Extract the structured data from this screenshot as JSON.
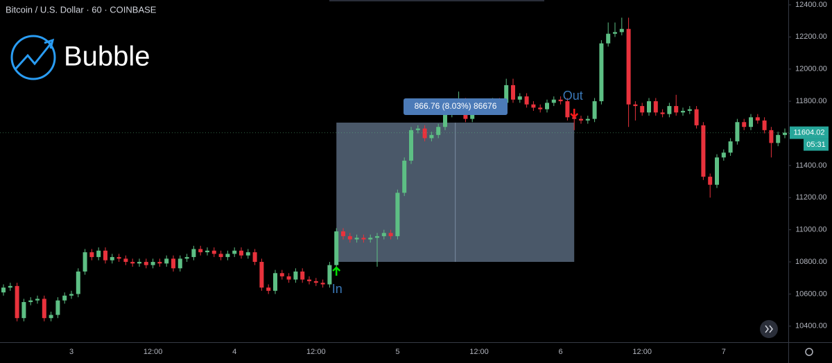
{
  "chart_data": {
    "type": "candlestick",
    "title": "Bitcoin / U.S. Dollar · 60 · COINBASE",
    "logo": "Bubble",
    "categories": [
      null,
      null,
      null,
      null,
      null,
      null,
      null,
      null,
      null,
      null,
      "3",
      null,
      null,
      null,
      null,
      null,
      null,
      null,
      null,
      null,
      null,
      null,
      "12:00",
      null,
      null,
      null,
      null,
      null,
      null,
      null,
      null,
      null,
      null,
      null,
      "4",
      null,
      null,
      null,
      null,
      null,
      null,
      null,
      null,
      null,
      null,
      null,
      "12:00",
      null,
      null,
      null,
      null,
      null,
      null,
      null,
      null,
      null,
      null,
      null,
      "5",
      null,
      null,
      null,
      null,
      null,
      null,
      null,
      null,
      null,
      null,
      null,
      "12:00",
      null,
      null,
      null,
      null,
      null,
      null,
      null,
      null,
      null,
      null,
      null,
      "6",
      null,
      null,
      null,
      null,
      null,
      null,
      null,
      null,
      null,
      null,
      null,
      "12:00",
      null,
      null,
      null,
      null,
      null,
      null,
      null,
      null,
      null,
      null,
      null,
      "7",
      null,
      null,
      null,
      null,
      null,
      null,
      null,
      null,
      null
    ],
    "open": [
      10610,
      10640,
      10650,
      10450,
      10550,
      10560,
      10570,
      10450,
      10470,
      10560,
      10590,
      10600,
      10740,
      10860,
      10830,
      10870,
      10810,
      10830,
      10820,
      10800,
      10790,
      10800,
      10780,
      10800,
      10790,
      10820,
      10760,
      10820,
      10830,
      10880,
      10860,
      10870,
      10850,
      10830,
      10850,
      10870,
      10840,
      10860,
      10800,
      10640,
      10620,
      10730,
      10710,
      10690,
      10740,
      10690,
      10680,
      10670,
      10660,
      10780,
      10990,
      10960,
      10940,
      10950,
      10940,
      10950,
      10960,
      10980,
      10960,
      11230,
      11430,
      11620,
      11630,
      11570,
      11590,
      11640,
      11720,
      11770,
      11800,
      11690,
      11780,
      11790,
      11770,
      11800,
      11790,
      11900,
      11810,
      11830,
      11780,
      11760,
      11750,
      11790,
      11810,
      11800,
      11700,
      11690,
      11680,
      11690,
      11800,
      12160,
      12220,
      12230,
      12250,
      11780,
      11770,
      11730,
      11800,
      11730,
      11720,
      11770,
      11730,
      11740,
      11750,
      11650,
      11330,
      11280,
      11450,
      11480,
      11550,
      11670,
      11640,
      11700,
      11680,
      11620,
      11540,
      11590
    ],
    "high": [
      10660,
      10670,
      10670,
      10570,
      10580,
      10590,
      10590,
      10490,
      10580,
      10610,
      10620,
      10760,
      10880,
      10880,
      10890,
      10890,
      10850,
      10850,
      10840,
      10820,
      10820,
      10820,
      10820,
      10820,
      10840,
      10840,
      10840,
      10850,
      10900,
      10900,
      10890,
      10890,
      10870,
      10870,
      10890,
      10890,
      10880,
      10880,
      10820,
      10660,
      10750,
      10750,
      10730,
      10760,
      10760,
      10710,
      10700,
      10690,
      10800,
      11010,
      11010,
      10980,
      10970,
      10970,
      10970,
      10980,
      11000,
      11000,
      11250,
      11450,
      11640,
      11650,
      11650,
      11610,
      11660,
      11740,
      11790,
      11860,
      11820,
      11800,
      11810,
      11810,
      11820,
      11820,
      11940,
      11940,
      11850,
      11850,
      11800,
      11780,
      11810,
      11830,
      11830,
      11820,
      11720,
      11710,
      11710,
      11820,
      12180,
      12290,
      12290,
      12320,
      12320,
      11800,
      11790,
      11820,
      11820,
      11750,
      11790,
      11840,
      11760,
      11770,
      11770,
      11670,
      11350,
      11470,
      11500,
      11570,
      11690,
      11690,
      11720,
      11720,
      11700,
      11640,
      11610,
      11630
    ],
    "low": [
      10590,
      10620,
      10430,
      10430,
      10530,
      10540,
      10430,
      10430,
      10450,
      10540,
      10570,
      10580,
      10720,
      10810,
      10810,
      10790,
      10790,
      10800,
      10780,
      10770,
      10770,
      10760,
      10760,
      10770,
      10770,
      10740,
      10740,
      10800,
      10810,
      10840,
      10840,
      10830,
      10810,
      10810,
      10830,
      10820,
      10820,
      10780,
      10620,
      10600,
      10600,
      10690,
      10670,
      10670,
      10670,
      10660,
      10650,
      10640,
      10640,
      10760,
      10940,
      10920,
      10920,
      10920,
      10920,
      10770,
      10940,
      10940,
      10940,
      11210,
      11410,
      11600,
      11550,
      11550,
      11570,
      11620,
      11700,
      11750,
      11670,
      11670,
      11760,
      11750,
      11750,
      11770,
      11770,
      11790,
      11790,
      11760,
      11740,
      11730,
      11730,
      11770,
      11780,
      11680,
      11620,
      11660,
      11660,
      11670,
      11780,
      12140,
      12200,
      12210,
      11640,
      11680,
      11710,
      11710,
      11710,
      11700,
      11700,
      11710,
      11710,
      11720,
      11630,
      11310,
      11200,
      11260,
      11430,
      11460,
      11530,
      11620,
      11620,
      11660,
      11600,
      11450,
      11520,
      11570
    ],
    "close": [
      10640,
      10650,
      10450,
      10550,
      10560,
      10570,
      10450,
      10470,
      10560,
      10590,
      10600,
      10740,
      10860,
      10830,
      10870,
      10810,
      10830,
      10820,
      10800,
      10790,
      10800,
      10780,
      10800,
      10790,
      10820,
      10760,
      10820,
      10830,
      10880,
      10860,
      10870,
      10850,
      10830,
      10850,
      10870,
      10840,
      10860,
      10800,
      10640,
      10620,
      10730,
      10710,
      10690,
      10740,
      10690,
      10680,
      10670,
      10660,
      10780,
      10990,
      10960,
      10940,
      10950,
      10940,
      10950,
      10960,
      10980,
      10960,
      11230,
      11430,
      11620,
      11630,
      11570,
      11590,
      11640,
      11720,
      11770,
      11800,
      11690,
      11780,
      11790,
      11770,
      11800,
      11790,
      11900,
      11810,
      11830,
      11780,
      11760,
      11750,
      11790,
      11810,
      11800,
      11700,
      11690,
      11680,
      11690,
      11800,
      12160,
      12220,
      12230,
      12250,
      11780,
      11770,
      11730,
      11800,
      11730,
      11720,
      11770,
      11730,
      11740,
      11750,
      11650,
      11330,
      11280,
      11450,
      11480,
      11550,
      11670,
      11640,
      11700,
      11680,
      11620,
      11540,
      11590,
      11604.02
    ],
    "up_color": "#5dbf84",
    "down_color": "#e8323c",
    "ylim": [
      10300,
      12430
    ],
    "yticks": [
      {
        "value": 10400,
        "label": "10400.00"
      },
      {
        "value": 10600,
        "label": "10600.00"
      },
      {
        "value": 10800,
        "label": "10800.00"
      },
      {
        "value": 11000,
        "label": "11000.00"
      },
      {
        "value": 11200,
        "label": "11200.00"
      },
      {
        "value": 11400,
        "label": "11400.00"
      },
      {
        "value": 11600,
        "label": "11600.00"
      },
      {
        "value": 11800,
        "label": "11800.00"
      },
      {
        "value": 12000,
        "label": "12000.00"
      },
      {
        "value": 12200,
        "label": "12200.00"
      },
      {
        "value": 12400,
        "label": "12400.00"
      }
    ],
    "countdown": "05:31",
    "measure": {
      "text": "866.76 (8.03%) 86676",
      "low": 10800,
      "high": 11666.76
    },
    "entry_label": "In",
    "exit_label": "Out"
  }
}
